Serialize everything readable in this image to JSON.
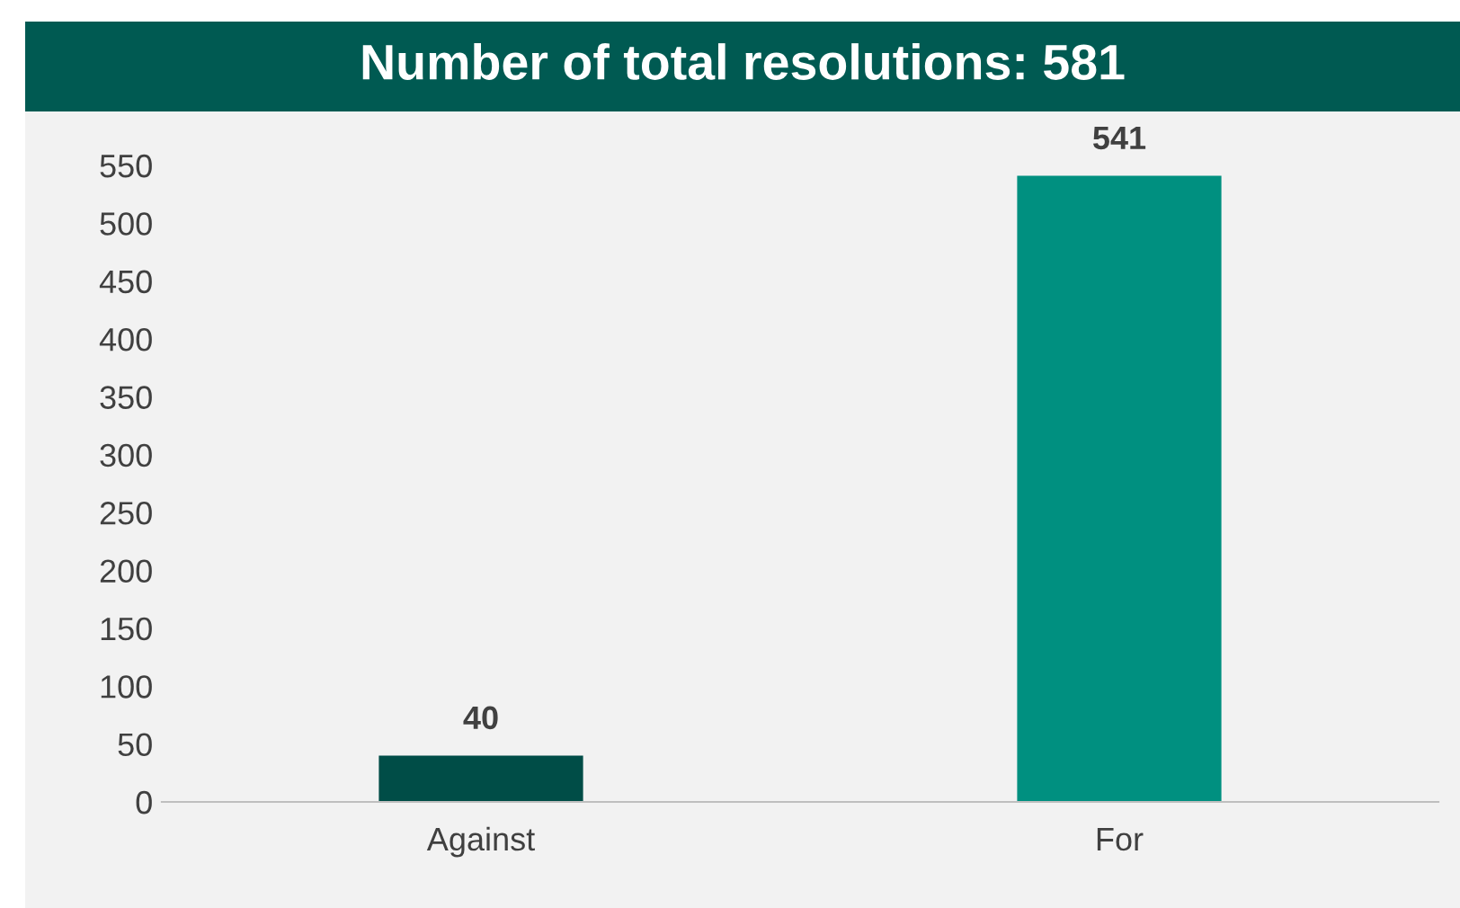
{
  "chart_data": {
    "type": "bar",
    "title": "Number of total resolutions: 581",
    "categories": [
      "Against",
      "For"
    ],
    "values": [
      40,
      541
    ],
    "colors": [
      "#004d47",
      "#009080"
    ],
    "ylim": [
      0,
      550
    ],
    "yticks": [
      0,
      50,
      100,
      150,
      200,
      250,
      300,
      350,
      400,
      450,
      500,
      550
    ],
    "data_labels": true,
    "grid": false,
    "legend": false
  }
}
